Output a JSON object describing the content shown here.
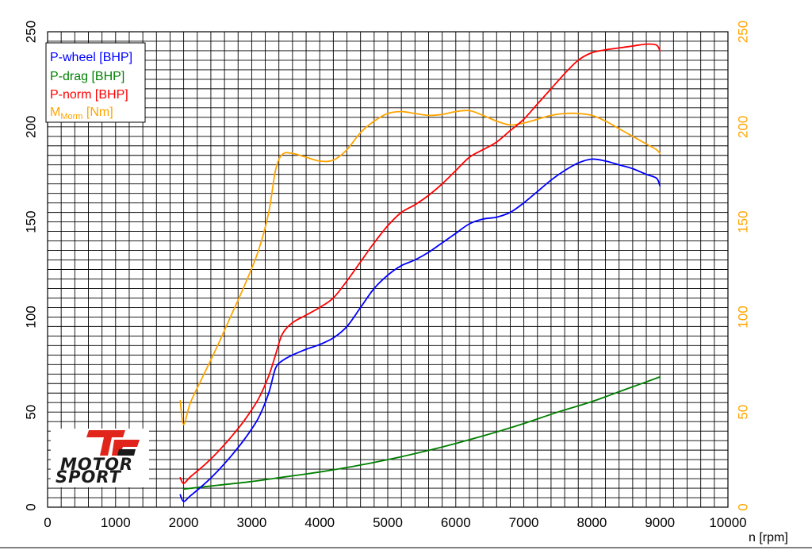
{
  "chart_data": {
    "type": "line",
    "xlabel": "n [rpm]",
    "ylabel": "",
    "y2label": "",
    "xlim": [
      0,
      10000
    ],
    "ylim": [
      0,
      250
    ],
    "y2lim": [
      0,
      250
    ],
    "x_ticks": [
      0,
      1000,
      2000,
      3000,
      4000,
      5000,
      6000,
      7000,
      8000,
      9000,
      10000
    ],
    "y_ticks": [
      0,
      50,
      100,
      150,
      200,
      250
    ],
    "y2_ticks": [
      0,
      50,
      100,
      150,
      200,
      250
    ],
    "x_minor_step": 200,
    "y_minor_step": 5,
    "grid": true,
    "legend": {
      "placement": "top-left",
      "entries": [
        {
          "text": "P-wheel [BHP]",
          "series": "P-wheel [BHP]",
          "color": "#0000ff"
        },
        {
          "text": "P-drag [BHP]",
          "series": "P-drag [BHP]",
          "color": "#008000"
        },
        {
          "text": "P-norm [BHP]",
          "series": "P-norm [BHP]",
          "color": "#ff0000"
        },
        {
          "text_main": "M",
          "text_sub": "Morm",
          "text_rest": " [Nm]",
          "series": "M_Morm [Nm]",
          "color": "#ffa500"
        }
      ]
    },
    "series": [
      {
        "name": "P-wheel [BHP]",
        "axis": "left",
        "color": "#0000ff",
        "points": [
          [
            1950,
            6.5
          ],
          [
            2000,
            3
          ],
          [
            2100,
            6
          ],
          [
            2300,
            12
          ],
          [
            2500,
            19
          ],
          [
            2700,
            27
          ],
          [
            2900,
            36
          ],
          [
            3100,
            47
          ],
          [
            3250,
            60
          ],
          [
            3350,
            73
          ],
          [
            3450,
            77
          ],
          [
            3600,
            80
          ],
          [
            3800,
            83
          ],
          [
            4000,
            85.5
          ],
          [
            4200,
            89
          ],
          [
            4400,
            95
          ],
          [
            4600,
            105
          ],
          [
            4800,
            115
          ],
          [
            5000,
            122
          ],
          [
            5200,
            127
          ],
          [
            5400,
            130
          ],
          [
            5600,
            134
          ],
          [
            5800,
            139
          ],
          [
            6000,
            144
          ],
          [
            6200,
            149
          ],
          [
            6400,
            151.5
          ],
          [
            6600,
            152.5
          ],
          [
            6800,
            155
          ],
          [
            7000,
            160
          ],
          [
            7200,
            166
          ],
          [
            7400,
            172
          ],
          [
            7600,
            177
          ],
          [
            7800,
            181
          ],
          [
            8000,
            183
          ],
          [
            8200,
            182
          ],
          [
            8400,
            180
          ],
          [
            8600,
            178
          ],
          [
            8800,
            175
          ],
          [
            8950,
            173
          ],
          [
            9000,
            169
          ]
        ]
      },
      {
        "name": "P-drag [BHP]",
        "axis": "left",
        "color": "#008000",
        "points": [
          [
            2000,
            9.5
          ],
          [
            2500,
            11.5
          ],
          [
            3000,
            13.5
          ],
          [
            3500,
            16
          ],
          [
            4000,
            18.5
          ],
          [
            4500,
            21.5
          ],
          [
            5000,
            25
          ],
          [
            5500,
            29
          ],
          [
            6000,
            33.5
          ],
          [
            6500,
            38.5
          ],
          [
            7000,
            44
          ],
          [
            7500,
            50
          ],
          [
            8000,
            55.5
          ],
          [
            8500,
            62
          ],
          [
            9000,
            68.5
          ]
        ]
      },
      {
        "name": "P-norm [BHP]",
        "axis": "left",
        "color": "#ff0000",
        "points": [
          [
            1950,
            15.5
          ],
          [
            2000,
            12.5
          ],
          [
            2100,
            16
          ],
          [
            2300,
            22
          ],
          [
            2500,
            29
          ],
          [
            2700,
            37
          ],
          [
            2900,
            46
          ],
          [
            3100,
            57
          ],
          [
            3250,
            69
          ],
          [
            3350,
            80
          ],
          [
            3450,
            91
          ],
          [
            3600,
            97
          ],
          [
            3800,
            101
          ],
          [
            4000,
            105
          ],
          [
            4200,
            110
          ],
          [
            4400,
            119
          ],
          [
            4600,
            129
          ],
          [
            4800,
            139
          ],
          [
            5000,
            148
          ],
          [
            5200,
            155
          ],
          [
            5400,
            159
          ],
          [
            5600,
            164
          ],
          [
            5800,
            170
          ],
          [
            6000,
            177
          ],
          [
            6200,
            184
          ],
          [
            6400,
            188
          ],
          [
            6600,
            192
          ],
          [
            6800,
            198
          ],
          [
            7000,
            204
          ],
          [
            7200,
            212
          ],
          [
            7400,
            220
          ],
          [
            7600,
            228
          ],
          [
            7800,
            235
          ],
          [
            8000,
            239
          ],
          [
            8200,
            240.5
          ],
          [
            8400,
            241.5
          ],
          [
            8600,
            242.5
          ],
          [
            8800,
            243.5
          ],
          [
            8950,
            243
          ],
          [
            9000,
            240
          ]
        ]
      },
      {
        "name": "M_Morm [Nm]",
        "axis": "right",
        "color": "#ffa500",
        "points": [
          [
            1950,
            56
          ],
          [
            2000,
            43.5
          ],
          [
            2100,
            55
          ],
          [
            2300,
            70
          ],
          [
            2500,
            85
          ],
          [
            2700,
            101
          ],
          [
            2900,
            117
          ],
          [
            3100,
            135
          ],
          [
            3250,
            155
          ],
          [
            3350,
            177
          ],
          [
            3450,
            185.5
          ],
          [
            3600,
            186
          ],
          [
            3800,
            184
          ],
          [
            4000,
            182
          ],
          [
            4200,
            182.5
          ],
          [
            4400,
            188
          ],
          [
            4600,
            197
          ],
          [
            4800,
            203
          ],
          [
            5000,
            207
          ],
          [
            5200,
            208
          ],
          [
            5400,
            207
          ],
          [
            5600,
            206
          ],
          [
            5800,
            206.5
          ],
          [
            6000,
            208
          ],
          [
            6200,
            208.5
          ],
          [
            6400,
            206
          ],
          [
            6600,
            203
          ],
          [
            6800,
            201
          ],
          [
            7000,
            202
          ],
          [
            7200,
            204
          ],
          [
            7400,
            206
          ],
          [
            7600,
            207
          ],
          [
            7800,
            207
          ],
          [
            8000,
            206
          ],
          [
            8200,
            203
          ],
          [
            8400,
            199
          ],
          [
            8600,
            195
          ],
          [
            8800,
            191
          ],
          [
            8950,
            188
          ],
          [
            9000,
            186
          ]
        ]
      }
    ]
  },
  "colors": {
    "left_axis_text": "#000000",
    "right_axis_text": "#ffa500",
    "grid": "#000000",
    "logo_accent": "#e1251b"
  },
  "logo": {
    "line1": "MOTOR",
    "line2": "SPORT",
    "emblem": "Tc"
  }
}
